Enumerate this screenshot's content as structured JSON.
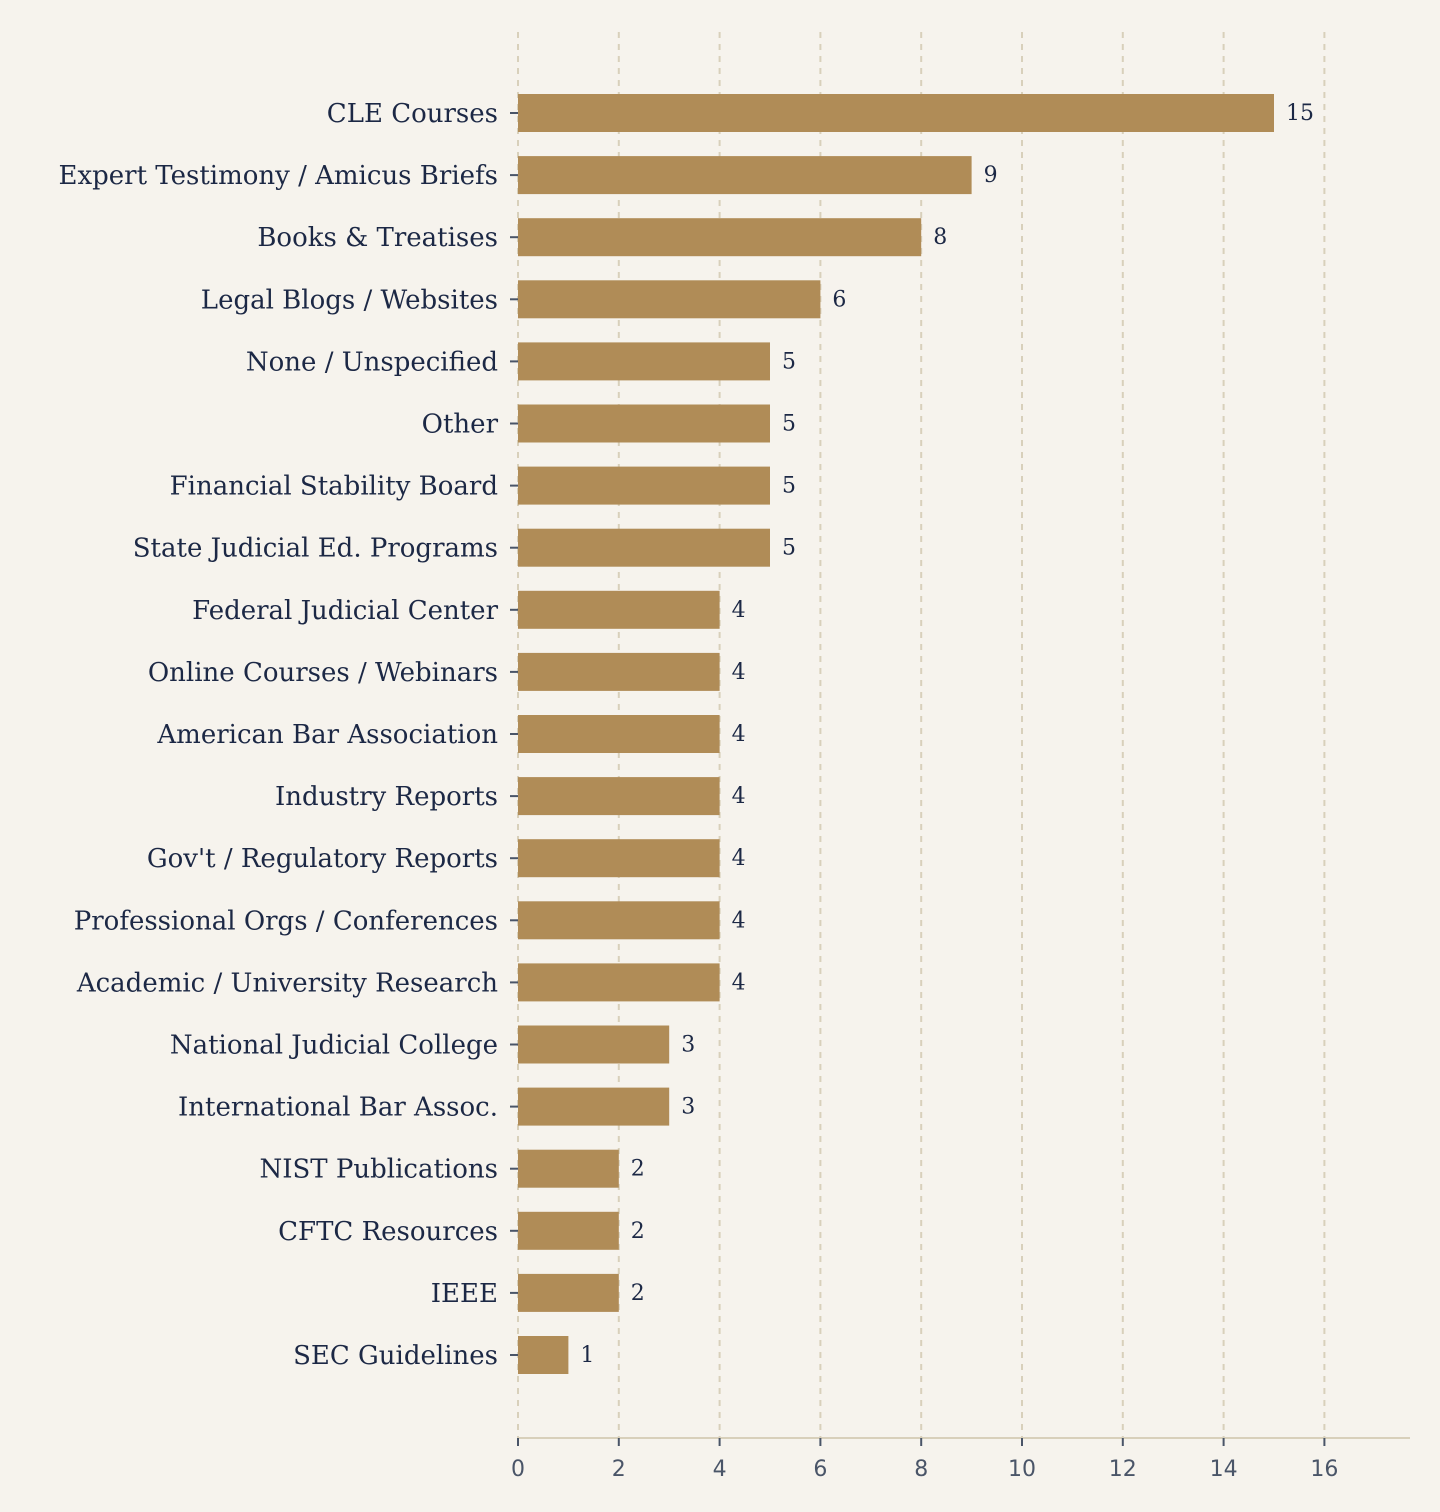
{
  "chart_data": {
    "type": "bar",
    "orientation": "horizontal",
    "title": "",
    "xlabel": "",
    "ylabel": "",
    "categories": [
      "CLE Courses",
      "Expert Testimony / Amicus Briefs",
      "Books & Treatises",
      "Legal Blogs / Websites",
      "None / Unspecified",
      "Other",
      "Financial Stability Board",
      "State Judicial Ed. Programs",
      "Federal Judicial Center",
      "Online Courses / Webinars",
      "American Bar Association",
      "Industry Reports",
      "Gov't / Regulatory Reports",
      "Professional Orgs / Conferences",
      "Academic / University Research",
      "National Judicial College",
      "International Bar Assoc.",
      "NIST Publications",
      "CFTC Resources",
      "IEEE",
      "SEC Guidelines"
    ],
    "values": [
      15,
      9,
      8,
      6,
      5,
      5,
      5,
      5,
      4,
      4,
      4,
      4,
      4,
      4,
      4,
      3,
      3,
      2,
      2,
      2,
      1
    ],
    "xlim": [
      0,
      17.8
    ],
    "xticks": [
      0,
      2,
      4,
      6,
      8,
      10,
      12,
      14,
      16
    ],
    "grid": "vertical dashed",
    "legend": "none",
    "colors": {
      "bar": "#b08c57",
      "background": "#f6f3ed",
      "text": "#1c2845",
      "tick_text": "#4a5568",
      "grid": "#d8d0bb"
    }
  }
}
